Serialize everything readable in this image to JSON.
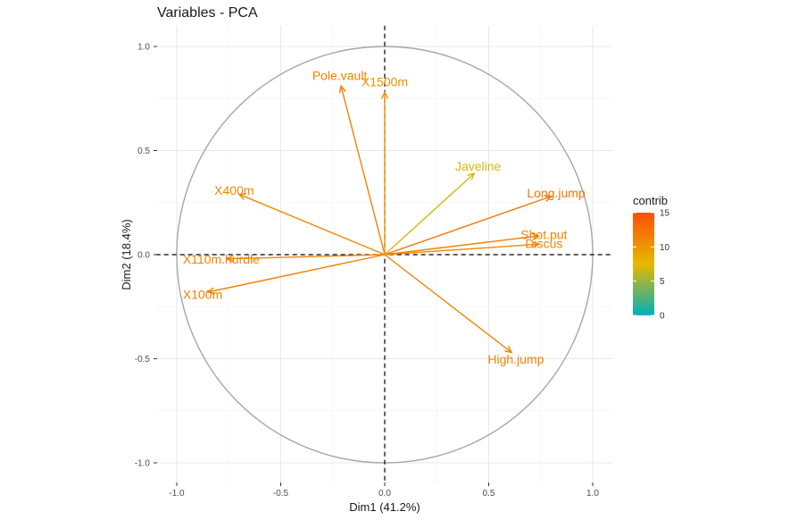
{
  "chart_data": {
    "type": "scatter",
    "subtype": "pca-variable-correlation-circle",
    "title": "Variables - PCA",
    "xlabel": "Dim1 (41.2%)",
    "ylabel": "Dim2 (18.4%)",
    "xlim": [
      -1.1,
      1.1
    ],
    "ylim": [
      -1.1,
      1.1
    ],
    "x_ticks": [
      "-1.0",
      "-0.5",
      "0.0",
      "0.5",
      "1.0"
    ],
    "y_ticks": [
      "-1.0",
      "-0.5",
      "0.0",
      "0.5",
      "1.0"
    ],
    "grid": true,
    "unit_circle": true,
    "reference_lines": "dashed at x=0 and y=0",
    "legend": {
      "title": "contrib",
      "placement": "right",
      "min": 0,
      "max": 15,
      "ticks": [
        "0",
        "5",
        "10",
        "15"
      ],
      "colors": [
        "#00AFBB",
        "#E7B800",
        "#FC4E07"
      ]
    },
    "variables": [
      {
        "name": "X100m",
        "x": -0.85,
        "y": -0.18,
        "contrib": 11.5
      },
      {
        "name": "Long.jump",
        "x": 0.8,
        "y": 0.28,
        "contrib": 12.3
      },
      {
        "name": "Shot.put",
        "x": 0.74,
        "y": 0.09,
        "contrib": 11.4
      },
      {
        "name": "High.jump",
        "x": 0.61,
        "y": -0.47,
        "contrib": 11.2
      },
      {
        "name": "X400m",
        "x": -0.7,
        "y": 0.29,
        "contrib": 11.0
      },
      {
        "name": "X110m.hurdle",
        "x": -0.76,
        "y": -0.02,
        "contrib": 11.2
      },
      {
        "name": "Discus",
        "x": 0.74,
        "y": 0.05,
        "contrib": 11.0
      },
      {
        "name": "Pole.vault",
        "x": -0.21,
        "y": 0.81,
        "contrib": 11.3
      },
      {
        "name": "Javeline",
        "x": 0.43,
        "y": 0.39,
        "contrib": 6.9
      },
      {
        "name": "X1500m",
        "x": 0.0,
        "y": 0.78,
        "contrib": 10.2
      }
    ]
  }
}
